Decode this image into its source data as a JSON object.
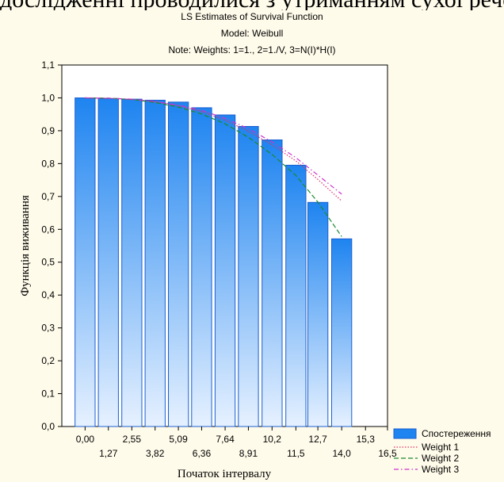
{
  "cropped_top_text": "дослідженні проводилися з утриманням сухої речовини",
  "chart_data": {
    "type": "bar",
    "title_lines": [
      "LS Estimates of Survival Function",
      "Model: Weibull",
      "Note: Weights: 1=1., 2=1./V, 3=N(I)*H(I)"
    ],
    "xlabel": "Початок інтервалу",
    "ylabel": "Функція виживання",
    "xlim": [
      -1.27,
      16.5
    ],
    "ylim": [
      0.0,
      1.1
    ],
    "grid": false,
    "legend_position": "bottom-right",
    "x_tick_labels_upper": [
      "0,00",
      "2,55",
      "5,09",
      "7,64",
      "10,2",
      "12,7",
      "15,3"
    ],
    "x_tick_values_upper": [
      0.0,
      2.55,
      5.09,
      7.64,
      10.2,
      12.7,
      15.3
    ],
    "x_tick_labels_lower": [
      "1,27",
      "3,82",
      "6,36",
      "8,91",
      "11,5",
      "14,0",
      "16,5"
    ],
    "x_tick_values_lower": [
      1.27,
      3.82,
      6.36,
      8.91,
      11.5,
      14.0,
      16.5
    ],
    "y_tick_labels": [
      "0,0",
      "0,1",
      "0,2",
      "0,3",
      "0,4",
      "0,5",
      "0,6",
      "0,7",
      "0,8",
      "0,9",
      "1,0",
      "1,1"
    ],
    "y_tick_values": [
      0.0,
      0.1,
      0.2,
      0.3,
      0.4,
      0.5,
      0.6,
      0.7,
      0.8,
      0.9,
      1.0,
      1.1
    ],
    "bars": {
      "name": "Спостереження",
      "x": [
        0.0,
        1.27,
        2.55,
        3.82,
        5.09,
        6.36,
        7.64,
        8.91,
        10.2,
        11.5,
        12.7,
        14.0
      ],
      "values": [
        1.0,
        0.998,
        0.996,
        0.993,
        0.987,
        0.97,
        0.948,
        0.913,
        0.872,
        0.795,
        0.682,
        0.571
      ],
      "color_top": "#1e84f0",
      "color_bottom": "#e6f1ff",
      "edge": "#1a5fd0"
    },
    "series": [
      {
        "name": "Weight 1",
        "style": "dotted",
        "color": "#e0306a",
        "x": [
          0.0,
          1.27,
          2.55,
          3.82,
          5.09,
          6.36,
          7.64,
          8.91,
          10.2,
          11.5,
          12.7,
          14.0
        ],
        "values": [
          1.0,
          0.999,
          0.995,
          0.988,
          0.976,
          0.958,
          0.932,
          0.898,
          0.857,
          0.808,
          0.752,
          0.686
        ]
      },
      {
        "name": "Weight 2",
        "style": "dashed",
        "color": "#1a8a2e",
        "x": [
          0.0,
          1.27,
          2.55,
          3.82,
          5.09,
          6.36,
          7.64,
          8.91,
          10.2,
          11.5,
          12.7,
          14.0
        ],
        "values": [
          1.0,
          0.999,
          0.995,
          0.986,
          0.972,
          0.951,
          0.921,
          0.88,
          0.828,
          0.764,
          0.683,
          0.578
        ]
      },
      {
        "name": "Weight 3",
        "style": "dashdot",
        "color": "#cc33cc",
        "x": [
          0.0,
          1.27,
          2.55,
          3.82,
          5.09,
          6.36,
          7.64,
          8.91,
          10.2,
          11.5,
          12.7,
          14.0
        ],
        "values": [
          1.0,
          0.999,
          0.996,
          0.989,
          0.978,
          0.962,
          0.938,
          0.906,
          0.866,
          0.818,
          0.765,
          0.707
        ]
      }
    ]
  }
}
